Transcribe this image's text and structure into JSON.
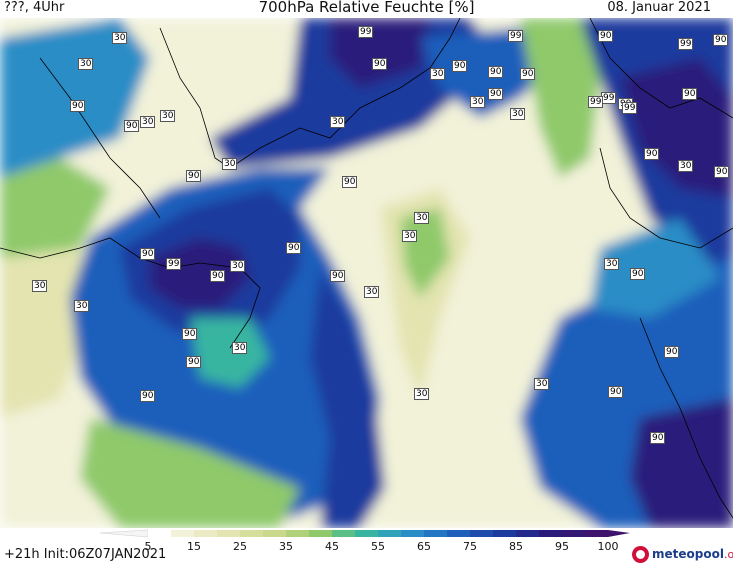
{
  "header": {
    "left": "???, 4Uhr",
    "title": "700hPa Relative Feuchte [%]",
    "date": "08. Januar 2021"
  },
  "colors": {
    "background": "#ffffff",
    "dry": "#f2f2d9",
    "c25": "#e3e4b0",
    "c35": "#c9d88a",
    "c45": "#8fc96a",
    "c55": "#38b5a1",
    "c65": "#2a8dc6",
    "c75": "#1e5fbb",
    "c85": "#1d3a9e",
    "c95": "#2a1b7a",
    "c100": "#3d136b"
  },
  "contour_labels": [
    {
      "text": "30"
    },
    {
      "text": "99"
    },
    {
      "text": "90"
    },
    {
      "text": "99"
    },
    {
      "text": "90"
    },
    {
      "text": "99"
    },
    {
      "text": "30"
    },
    {
      "text": "30"
    },
    {
      "text": "90"
    },
    {
      "text": "30"
    },
    {
      "text": "90"
    },
    {
      "text": "90"
    },
    {
      "text": "90"
    },
    {
      "text": "30"
    },
    {
      "text": "90"
    },
    {
      "text": "99"
    },
    {
      "text": "99"
    },
    {
      "text": "90"
    },
    {
      "text": "90"
    },
    {
      "text": "30"
    },
    {
      "text": "90"
    },
    {
      "text": "30"
    },
    {
      "text": "30"
    },
    {
      "text": "90"
    },
    {
      "text": "30"
    },
    {
      "text": "30"
    },
    {
      "text": "90"
    },
    {
      "text": "30"
    },
    {
      "text": "90"
    },
    {
      "text": "99"
    },
    {
      "text": "99"
    },
    {
      "text": "90"
    },
    {
      "text": "30"
    },
    {
      "text": "90"
    },
    {
      "text": "90"
    },
    {
      "text": "99"
    },
    {
      "text": "30"
    },
    {
      "text": "90"
    },
    {
      "text": "30"
    },
    {
      "text": "90"
    },
    {
      "text": "30"
    },
    {
      "text": "30"
    },
    {
      "text": "90"
    },
    {
      "text": "30"
    },
    {
      "text": "90"
    },
    {
      "text": "90"
    },
    {
      "text": "90"
    },
    {
      "text": "90"
    },
    {
      "text": "99"
    },
    {
      "text": "30"
    },
    {
      "text": "90"
    },
    {
      "text": "90"
    },
    {
      "text": "30"
    },
    {
      "text": "90"
    },
    {
      "text": "30"
    }
  ],
  "legend": {
    "ticks": [
      "5",
      "15",
      "25",
      "35",
      "45",
      "55",
      "65",
      "75",
      "85",
      "95",
      "100"
    ]
  },
  "footer": {
    "init": "+21h  Init:06Z07JAN2021",
    "brand_main": "meteopool",
    "brand_suffix": ".org"
  }
}
